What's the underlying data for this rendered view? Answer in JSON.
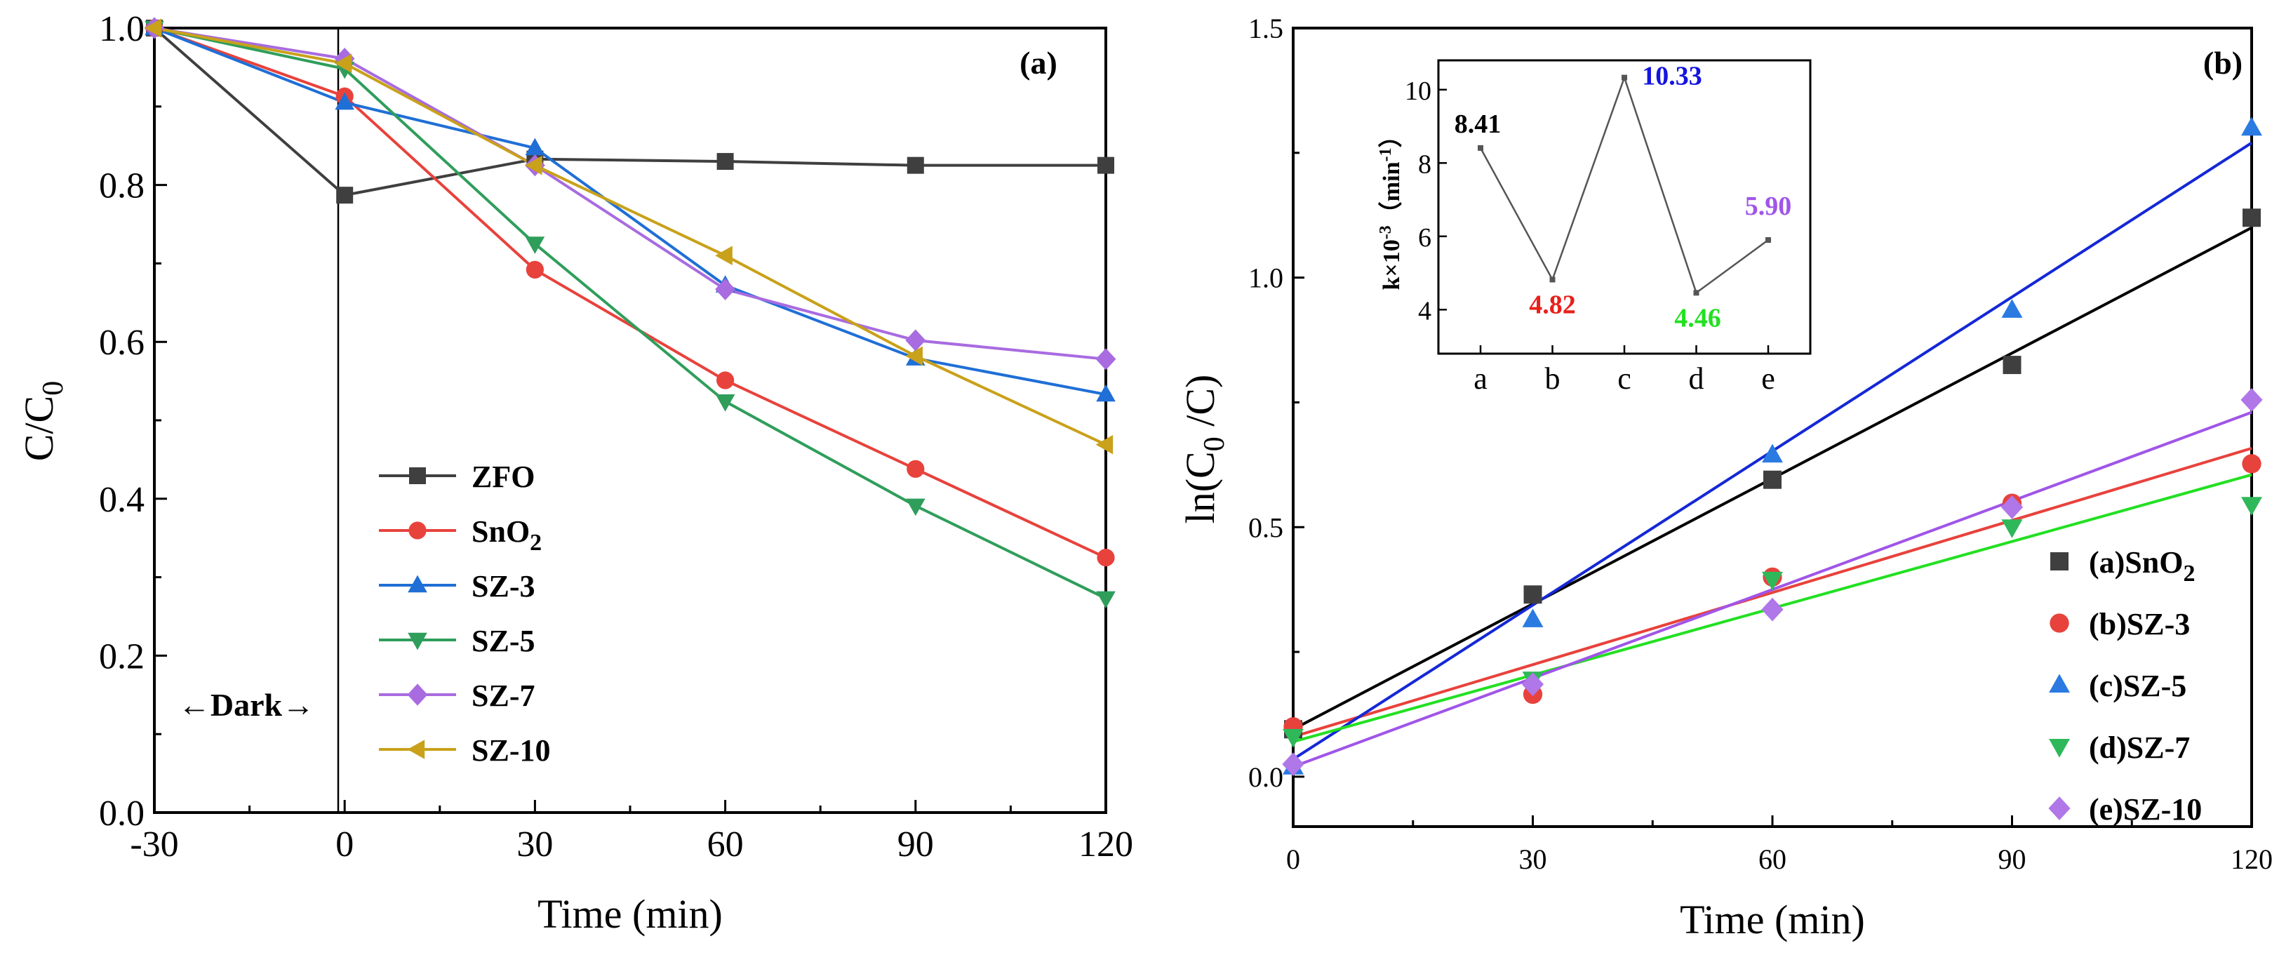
{
  "chart_data": [
    {
      "id": "a",
      "type": "line",
      "panel_label": "(a)",
      "xlabel": "Time (min)",
      "ylabel": "C/C0",
      "ylabel_main": "C/C",
      "ylabel_sub": "0",
      "xlim": [
        -30,
        120
      ],
      "ylim": [
        0,
        1
      ],
      "xticks": [
        -30,
        0,
        30,
        60,
        90,
        120
      ],
      "xtick_labels": [
        "-30",
        "0",
        "30",
        "60",
        "90",
        "120"
      ],
      "yticks": [
        0,
        0.2,
        0.4,
        0.6,
        0.8,
        1.0
      ],
      "ytick_labels": [
        "0.0",
        "0.2",
        "0.4",
        "0.6",
        "0.8",
        "1.0"
      ],
      "annotation": "←Dark→",
      "x": [
        -30,
        0,
        30,
        60,
        90,
        120
      ],
      "series": [
        {
          "name": "ZFO",
          "label_main": "ZFO",
          "label_sub": "",
          "color": "#3f3f3f",
          "marker": "square",
          "values": [
            1.0,
            0.787,
            0.833,
            0.83,
            0.825,
            0.825
          ]
        },
        {
          "name": "SnO2",
          "label_main": "SnO",
          "label_sub": "2",
          "color": "#e8423c",
          "marker": "circle",
          "values": [
            1.0,
            0.913,
            0.692,
            0.551,
            0.438,
            0.325
          ]
        },
        {
          "name": "SZ-3",
          "label_main": "SZ-3",
          "label_sub": "",
          "color": "#1f6fd6",
          "marker": "triangle-up",
          "values": [
            1.0,
            0.905,
            0.847,
            0.672,
            0.579,
            0.533
          ]
        },
        {
          "name": "SZ-5",
          "label_main": "SZ-5",
          "label_sub": "",
          "color": "#2f9e5b",
          "marker": "triangle-down",
          "values": [
            1.0,
            0.948,
            0.725,
            0.524,
            0.391,
            0.273
          ]
        },
        {
          "name": "SZ-7",
          "label_main": "SZ-7",
          "label_sub": "",
          "color": "#a86be0",
          "marker": "diamond",
          "values": [
            1.0,
            0.961,
            0.825,
            0.667,
            0.602,
            0.578
          ]
        },
        {
          "name": "SZ-10",
          "label_main": "SZ-10",
          "label_sub": "",
          "color": "#c9a11a",
          "marker": "triangle-left",
          "values": [
            1.0,
            0.955,
            0.825,
            0.71,
            0.582,
            0.469
          ]
        }
      ]
    },
    {
      "id": "b",
      "type": "scatter",
      "panel_label": "(b)",
      "xlabel": "Time (min)",
      "ylabel": "ln(C0 /C)",
      "ylabel_main": "ln(C",
      "ylabel_sub": "0",
      "ylabel_tail": " /C)",
      "xlim": [
        0,
        120
      ],
      "ylim": [
        -0.1,
        1.5
      ],
      "xticks": [
        0,
        30,
        60,
        90,
        120
      ],
      "xtick_labels": [
        "0",
        "30",
        "60",
        "90",
        "120"
      ],
      "yticks": [
        0,
        0.5,
        1.0,
        1.5
      ],
      "ytick_labels": [
        "0.0",
        "0.5",
        "1.0",
        "1.5"
      ],
      "x": [
        0,
        30,
        60,
        90,
        120
      ],
      "series": [
        {
          "name": "(a)SnO2",
          "label_main": "(a)SnO",
          "label_sub": "2",
          "color": "#3f3f3f",
          "line_color": "#000000",
          "marker": "square",
          "values": [
            0.095,
            0.365,
            0.595,
            0.825,
            1.12
          ],
          "fit": [
            0.095,
            1.1
          ]
        },
        {
          "name": "(b)SZ-3",
          "label_main": "(b)SZ-3",
          "label_sub": "",
          "color": "#e8423c",
          "line_color": "#e8423c",
          "marker": "circle",
          "values": [
            0.1,
            0.165,
            0.4,
            0.548,
            0.627
          ],
          "fit": [
            0.08,
            0.658
          ]
        },
        {
          "name": "(c)SZ-5",
          "label_main": "(c)SZ-5",
          "label_sub": "",
          "color": "#2a7ae2",
          "line_color": "#1428d6",
          "marker": "triangle-up",
          "values": [
            0.02,
            0.315,
            0.645,
            0.935,
            1.3
          ],
          "fit": [
            0.035,
            1.27
          ]
        },
        {
          "name": "(d)SZ-7",
          "label_main": "(d)SZ-7",
          "label_sub": "",
          "color": "#2fb85a",
          "line_color": "#22e022",
          "marker": "triangle-down",
          "values": [
            0.08,
            0.195,
            0.395,
            0.5,
            0.545
          ],
          "fit": [
            0.07,
            0.605
          ]
        },
        {
          "name": "(e)SZ-10",
          "label_main": "(e)SZ-10",
          "label_sub": "",
          "color": "#b077e8",
          "line_color": "#a055e8",
          "marker": "diamond",
          "values": [
            0.025,
            0.185,
            0.335,
            0.54,
            0.755
          ],
          "fit": [
            0.02,
            0.73
          ]
        }
      ]
    },
    {
      "id": "inset",
      "type": "line",
      "ylabel": "k×10-3（min-1）",
      "ylabel_parts": [
        "k×10",
        "-3",
        "（min",
        "-1",
        "）"
      ],
      "categories": [
        "a",
        "b",
        "c",
        "d",
        "e"
      ],
      "values": [
        8.41,
        4.82,
        10.33,
        4.46,
        5.9
      ],
      "value_labels": [
        "8.41",
        "4.82",
        "10.33",
        "4.46",
        "5.90"
      ],
      "label_colors": [
        "#000000",
        "#e8201a",
        "#1414e0",
        "#22e022",
        "#a055e8"
      ],
      "ylim": [
        2.8,
        10.8
      ],
      "yticks": [
        4,
        6,
        8,
        10
      ],
      "ytick_labels": [
        "4",
        "6",
        "8",
        "10"
      ],
      "line_color": "#555555"
    }
  ]
}
